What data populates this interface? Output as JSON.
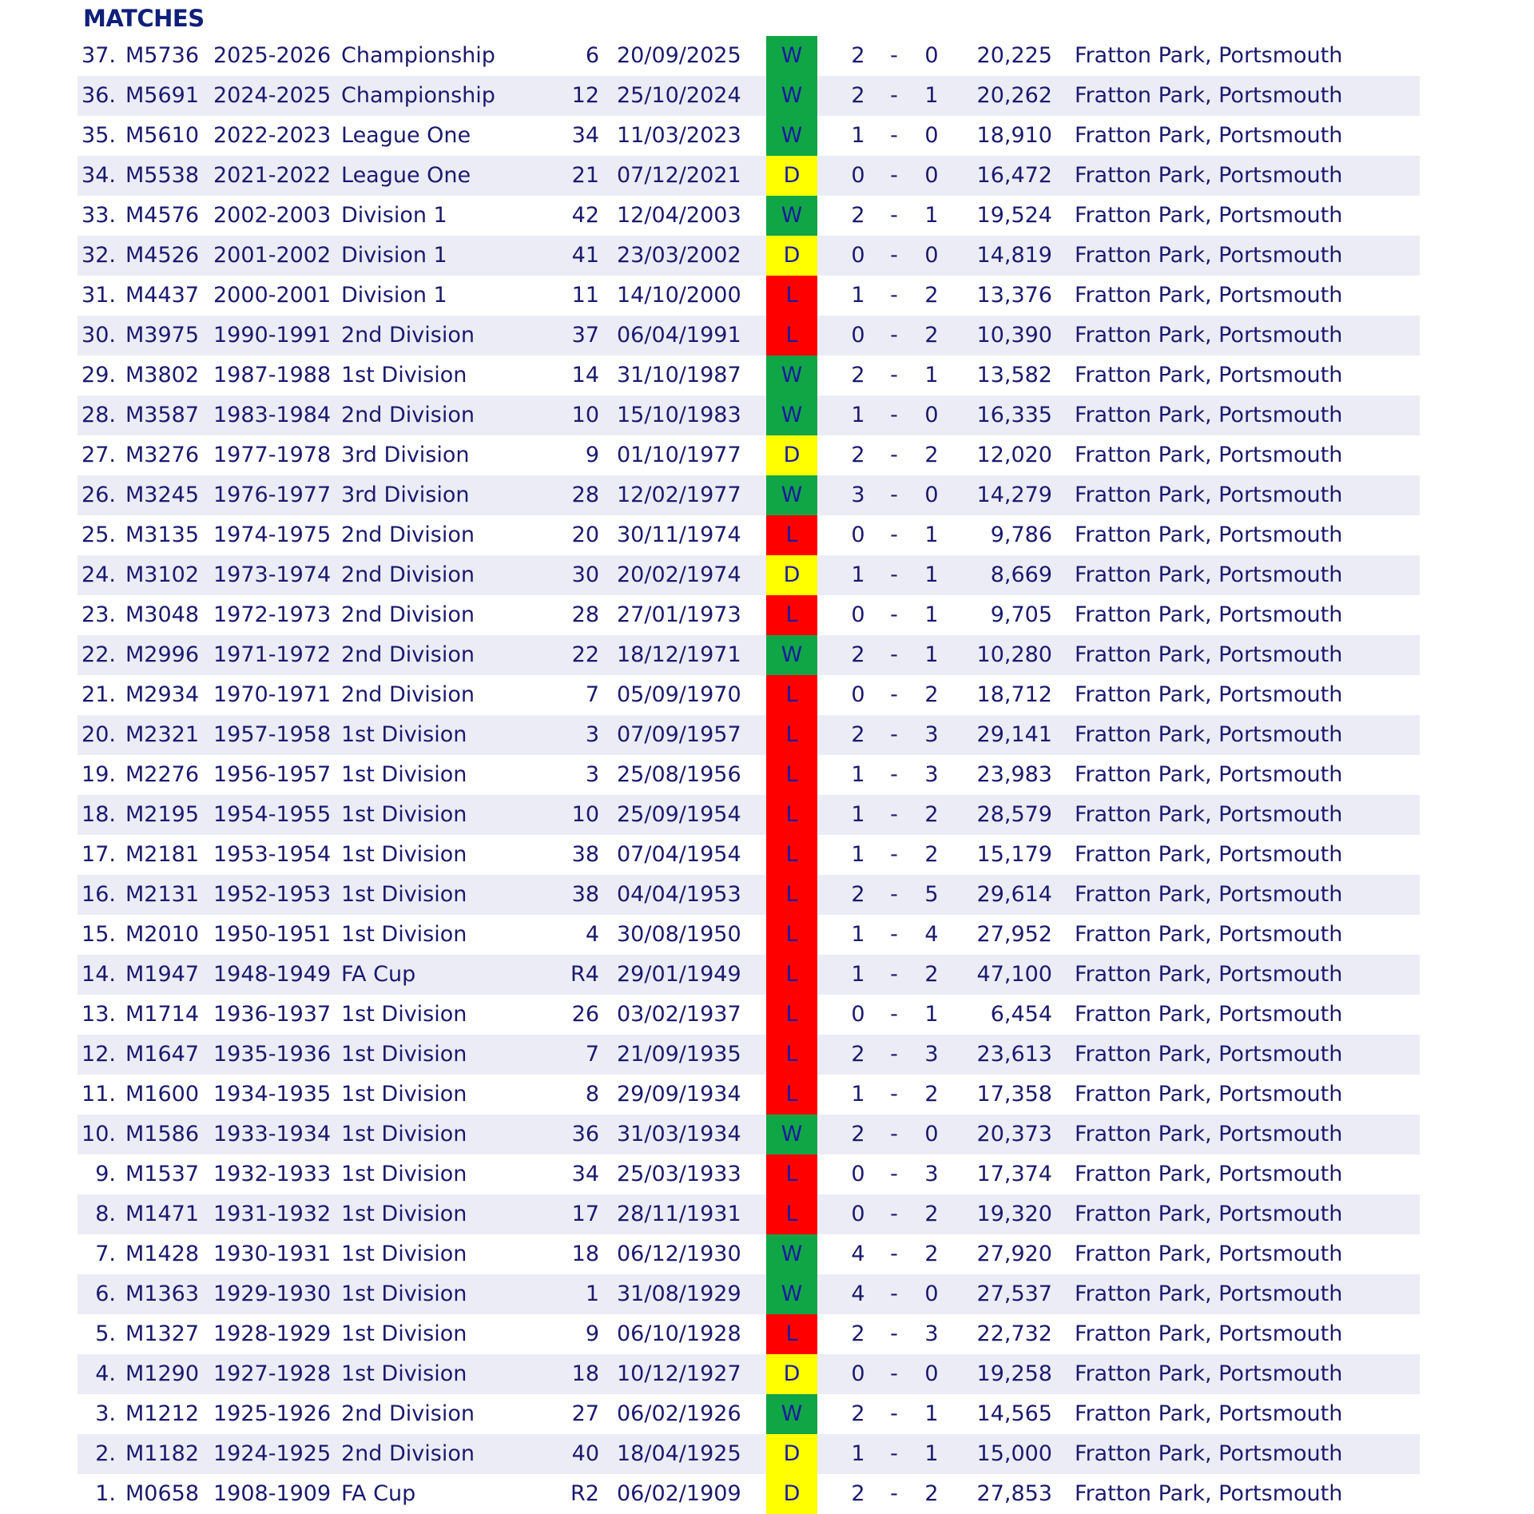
{
  "heading": "MATCHES",
  "colors": {
    "win": "#10a646",
    "draw": "#ffff00",
    "loss": "#ff0000",
    "text": "#1a1a6e",
    "stripe": "#ececf6"
  },
  "matches": [
    {
      "num": "37.",
      "code": "M5736",
      "season": "2025-2026",
      "comp": "Championship",
      "round": "6",
      "date": "20/09/2025",
      "result": "W",
      "home": "2",
      "away": "0",
      "att": "20,225",
      "venue": "Fratton Park, Portsmouth"
    },
    {
      "num": "36.",
      "code": "M5691",
      "season": "2024-2025",
      "comp": "Championship",
      "round": "12",
      "date": "25/10/2024",
      "result": "W",
      "home": "2",
      "away": "1",
      "att": "20,262",
      "venue": "Fratton Park, Portsmouth"
    },
    {
      "num": "35.",
      "code": "M5610",
      "season": "2022-2023",
      "comp": "League One",
      "round": "34",
      "date": "11/03/2023",
      "result": "W",
      "home": "1",
      "away": "0",
      "att": "18,910",
      "venue": "Fratton Park, Portsmouth"
    },
    {
      "num": "34.",
      "code": "M5538",
      "season": "2021-2022",
      "comp": "League One",
      "round": "21",
      "date": "07/12/2021",
      "result": "D",
      "home": "0",
      "away": "0",
      "att": "16,472",
      "venue": "Fratton Park, Portsmouth"
    },
    {
      "num": "33.",
      "code": "M4576",
      "season": "2002-2003",
      "comp": "Division 1",
      "round": "42",
      "date": "12/04/2003",
      "result": "W",
      "home": "2",
      "away": "1",
      "att": "19,524",
      "venue": "Fratton Park, Portsmouth"
    },
    {
      "num": "32.",
      "code": "M4526",
      "season": "2001-2002",
      "comp": "Division 1",
      "round": "41",
      "date": "23/03/2002",
      "result": "D",
      "home": "0",
      "away": "0",
      "att": "14,819",
      "venue": "Fratton Park, Portsmouth"
    },
    {
      "num": "31.",
      "code": "M4437",
      "season": "2000-2001",
      "comp": "Division 1",
      "round": "11",
      "date": "14/10/2000",
      "result": "L",
      "home": "1",
      "away": "2",
      "att": "13,376",
      "venue": "Fratton Park, Portsmouth"
    },
    {
      "num": "30.",
      "code": "M3975",
      "season": "1990-1991",
      "comp": "2nd Division",
      "round": "37",
      "date": "06/04/1991",
      "result": "L",
      "home": "0",
      "away": "2",
      "att": "10,390",
      "venue": "Fratton Park, Portsmouth"
    },
    {
      "num": "29.",
      "code": "M3802",
      "season": "1987-1988",
      "comp": "1st Division",
      "round": "14",
      "date": "31/10/1987",
      "result": "W",
      "home": "2",
      "away": "1",
      "att": "13,582",
      "venue": "Fratton Park, Portsmouth"
    },
    {
      "num": "28.",
      "code": "M3587",
      "season": "1983-1984",
      "comp": "2nd Division",
      "round": "10",
      "date": "15/10/1983",
      "result": "W",
      "home": "1",
      "away": "0",
      "att": "16,335",
      "venue": "Fratton Park, Portsmouth"
    },
    {
      "num": "27.",
      "code": "M3276",
      "season": "1977-1978",
      "comp": "3rd Division",
      "round": "9",
      "date": "01/10/1977",
      "result": "D",
      "home": "2",
      "away": "2",
      "att": "12,020",
      "venue": "Fratton Park, Portsmouth"
    },
    {
      "num": "26.",
      "code": "M3245",
      "season": "1976-1977",
      "comp": "3rd Division",
      "round": "28",
      "date": "12/02/1977",
      "result": "W",
      "home": "3",
      "away": "0",
      "att": "14,279",
      "venue": "Fratton Park, Portsmouth"
    },
    {
      "num": "25.",
      "code": "M3135",
      "season": "1974-1975",
      "comp": "2nd Division",
      "round": "20",
      "date": "30/11/1974",
      "result": "L",
      "home": "0",
      "away": "1",
      "att": "9,786",
      "venue": "Fratton Park, Portsmouth"
    },
    {
      "num": "24.",
      "code": "M3102",
      "season": "1973-1974",
      "comp": "2nd Division",
      "round": "30",
      "date": "20/02/1974",
      "result": "D",
      "home": "1",
      "away": "1",
      "att": "8,669",
      "venue": "Fratton Park, Portsmouth"
    },
    {
      "num": "23.",
      "code": "M3048",
      "season": "1972-1973",
      "comp": "2nd Division",
      "round": "28",
      "date": "27/01/1973",
      "result": "L",
      "home": "0",
      "away": "1",
      "att": "9,705",
      "venue": "Fratton Park, Portsmouth"
    },
    {
      "num": "22.",
      "code": "M2996",
      "season": "1971-1972",
      "comp": "2nd Division",
      "round": "22",
      "date": "18/12/1971",
      "result": "W",
      "home": "2",
      "away": "1",
      "att": "10,280",
      "venue": "Fratton Park, Portsmouth"
    },
    {
      "num": "21.",
      "code": "M2934",
      "season": "1970-1971",
      "comp": "2nd Division",
      "round": "7",
      "date": "05/09/1970",
      "result": "L",
      "home": "0",
      "away": "2",
      "att": "18,712",
      "venue": "Fratton Park, Portsmouth"
    },
    {
      "num": "20.",
      "code": "M2321",
      "season": "1957-1958",
      "comp": "1st Division",
      "round": "3",
      "date": "07/09/1957",
      "result": "L",
      "home": "2",
      "away": "3",
      "att": "29,141",
      "venue": "Fratton Park, Portsmouth"
    },
    {
      "num": "19.",
      "code": "M2276",
      "season": "1956-1957",
      "comp": "1st Division",
      "round": "3",
      "date": "25/08/1956",
      "result": "L",
      "home": "1",
      "away": "3",
      "att": "23,983",
      "venue": "Fratton Park, Portsmouth"
    },
    {
      "num": "18.",
      "code": "M2195",
      "season": "1954-1955",
      "comp": "1st Division",
      "round": "10",
      "date": "25/09/1954",
      "result": "L",
      "home": "1",
      "away": "2",
      "att": "28,579",
      "venue": "Fratton Park, Portsmouth"
    },
    {
      "num": "17.",
      "code": "M2181",
      "season": "1953-1954",
      "comp": "1st Division",
      "round": "38",
      "date": "07/04/1954",
      "result": "L",
      "home": "1",
      "away": "2",
      "att": "15,179",
      "venue": "Fratton Park, Portsmouth"
    },
    {
      "num": "16.",
      "code": "M2131",
      "season": "1952-1953",
      "comp": "1st Division",
      "round": "38",
      "date": "04/04/1953",
      "result": "L",
      "home": "2",
      "away": "5",
      "att": "29,614",
      "venue": "Fratton Park, Portsmouth"
    },
    {
      "num": "15.",
      "code": "M2010",
      "season": "1950-1951",
      "comp": "1st Division",
      "round": "4",
      "date": "30/08/1950",
      "result": "L",
      "home": "1",
      "away": "4",
      "att": "27,952",
      "venue": "Fratton Park, Portsmouth"
    },
    {
      "num": "14.",
      "code": "M1947",
      "season": "1948-1949",
      "comp": "FA Cup",
      "round": "R4",
      "date": "29/01/1949",
      "result": "L",
      "home": "1",
      "away": "2",
      "att": "47,100",
      "venue": "Fratton Park, Portsmouth"
    },
    {
      "num": "13.",
      "code": "M1714",
      "season": "1936-1937",
      "comp": "1st Division",
      "round": "26",
      "date": "03/02/1937",
      "result": "L",
      "home": "0",
      "away": "1",
      "att": "6,454",
      "venue": "Fratton Park, Portsmouth"
    },
    {
      "num": "12.",
      "code": "M1647",
      "season": "1935-1936",
      "comp": "1st Division",
      "round": "7",
      "date": "21/09/1935",
      "result": "L",
      "home": "2",
      "away": "3",
      "att": "23,613",
      "venue": "Fratton Park, Portsmouth"
    },
    {
      "num": "11.",
      "code": "M1600",
      "season": "1934-1935",
      "comp": "1st Division",
      "round": "8",
      "date": "29/09/1934",
      "result": "L",
      "home": "1",
      "away": "2",
      "att": "17,358",
      "venue": "Fratton Park, Portsmouth"
    },
    {
      "num": "10.",
      "code": "M1586",
      "season": "1933-1934",
      "comp": "1st Division",
      "round": "36",
      "date": "31/03/1934",
      "result": "W",
      "home": "2",
      "away": "0",
      "att": "20,373",
      "venue": "Fratton Park, Portsmouth"
    },
    {
      "num": "9.",
      "code": "M1537",
      "season": "1932-1933",
      "comp": "1st Division",
      "round": "34",
      "date": "25/03/1933",
      "result": "L",
      "home": "0",
      "away": "3",
      "att": "17,374",
      "venue": "Fratton Park, Portsmouth"
    },
    {
      "num": "8.",
      "code": "M1471",
      "season": "1931-1932",
      "comp": "1st Division",
      "round": "17",
      "date": "28/11/1931",
      "result": "L",
      "home": "0",
      "away": "2",
      "att": "19,320",
      "venue": "Fratton Park, Portsmouth"
    },
    {
      "num": "7.",
      "code": "M1428",
      "season": "1930-1931",
      "comp": "1st Division",
      "round": "18",
      "date": "06/12/1930",
      "result": "W",
      "home": "4",
      "away": "2",
      "att": "27,920",
      "venue": "Fratton Park, Portsmouth"
    },
    {
      "num": "6.",
      "code": "M1363",
      "season": "1929-1930",
      "comp": "1st Division",
      "round": "1",
      "date": "31/08/1929",
      "result": "W",
      "home": "4",
      "away": "0",
      "att": "27,537",
      "venue": "Fratton Park, Portsmouth"
    },
    {
      "num": "5.",
      "code": "M1327",
      "season": "1928-1929",
      "comp": "1st Division",
      "round": "9",
      "date": "06/10/1928",
      "result": "L",
      "home": "2",
      "away": "3",
      "att": "22,732",
      "venue": "Fratton Park, Portsmouth"
    },
    {
      "num": "4.",
      "code": "M1290",
      "season": "1927-1928",
      "comp": "1st Division",
      "round": "18",
      "date": "10/12/1927",
      "result": "D",
      "home": "0",
      "away": "0",
      "att": "19,258",
      "venue": "Fratton Park, Portsmouth"
    },
    {
      "num": "3.",
      "code": "M1212",
      "season": "1925-1926",
      "comp": "2nd Division",
      "round": "27",
      "date": "06/02/1926",
      "result": "W",
      "home": "2",
      "away": "1",
      "att": "14,565",
      "venue": "Fratton Park, Portsmouth"
    },
    {
      "num": "2.",
      "code": "M1182",
      "season": "1924-1925",
      "comp": "2nd Division",
      "round": "40",
      "date": "18/04/1925",
      "result": "D",
      "home": "1",
      "away": "1",
      "att": "15,000",
      "venue": "Fratton Park, Portsmouth"
    },
    {
      "num": "1.",
      "code": "M0658",
      "season": "1908-1909",
      "comp": "FA Cup",
      "round": "R2",
      "date": "06/02/1909",
      "result": "D",
      "home": "2",
      "away": "2",
      "att": "27,853",
      "venue": "Fratton Park, Portsmouth"
    }
  ]
}
